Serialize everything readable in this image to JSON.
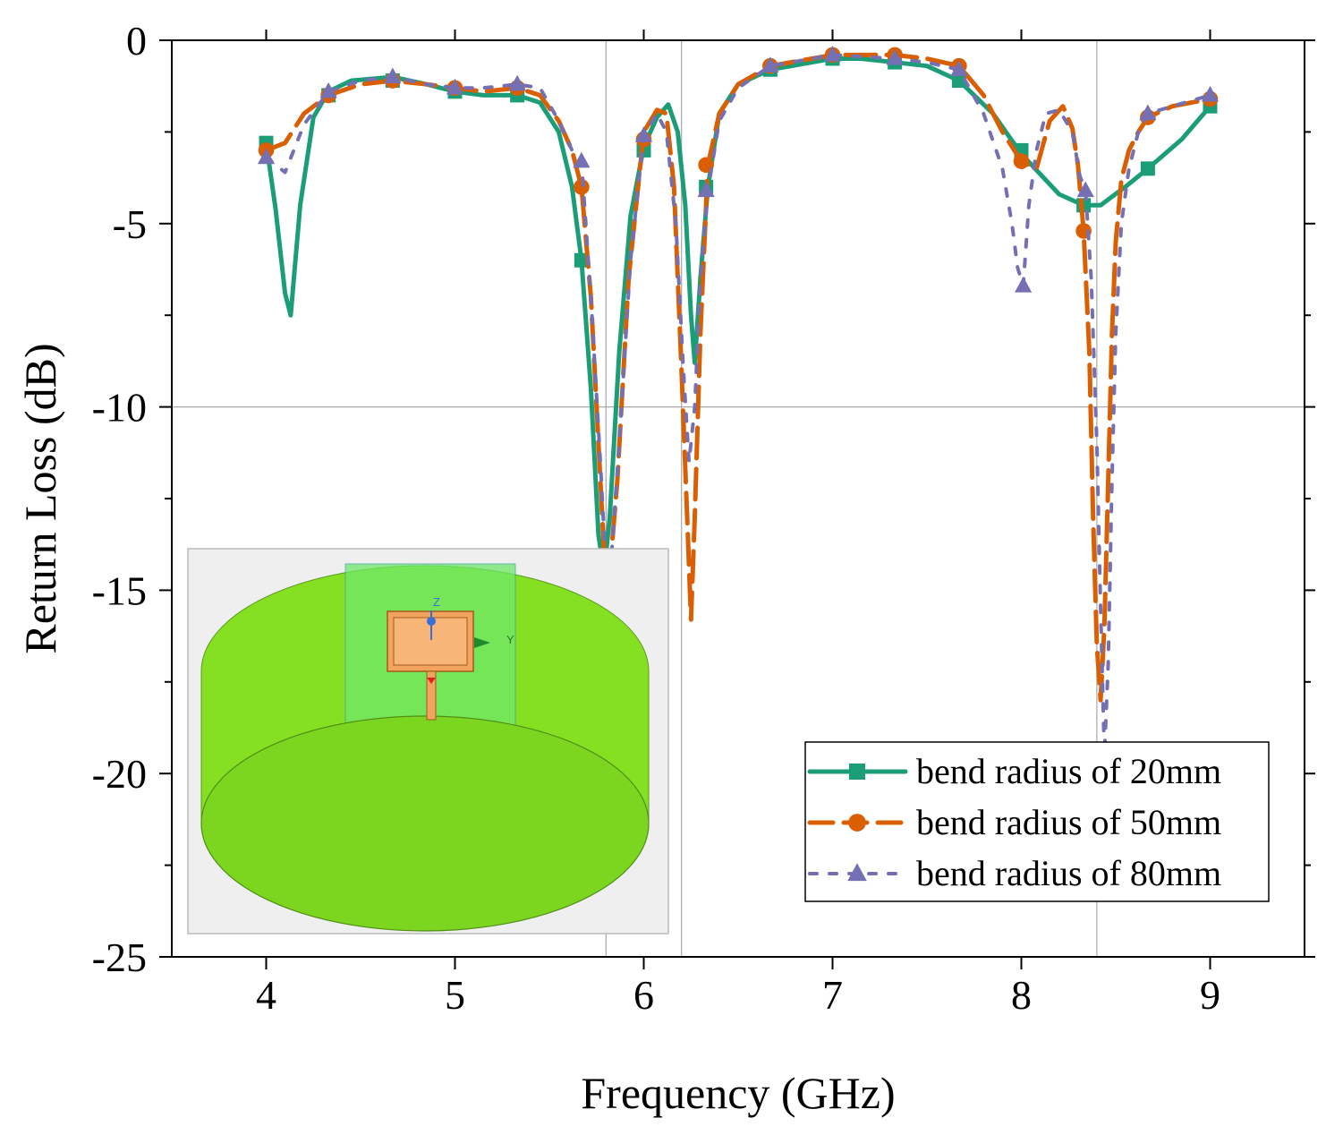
{
  "chart_data": {
    "type": "line",
    "xlabel": "Frequency (GHz)",
    "ylabel": "Return Loss (dB)",
    "xlim": [
      3.5,
      9.5
    ],
    "ylim": [
      -25,
      0
    ],
    "xticks": [
      4,
      5,
      6,
      7,
      8,
      9
    ],
    "yticks": [
      0,
      -5,
      -10,
      -15,
      -20,
      -25
    ],
    "grid": {
      "vertical_lines_x": [
        5.8,
        6.2,
        8.4
      ],
      "horizontal_lines_y": [
        -10
      ]
    },
    "legend_position": "bottom-right",
    "series": [
      {
        "name": "bend radius of 20mm",
        "color": "#1b9e77",
        "line_style": "solid",
        "marker": "square",
        "x": [
          4.0,
          4.05,
          4.1,
          4.13,
          4.18,
          4.25,
          4.33,
          4.45,
          4.67,
          4.85,
          5.0,
          5.15,
          5.33,
          5.45,
          5.55,
          5.62,
          5.67,
          5.72,
          5.76,
          5.79,
          5.82,
          5.87,
          5.93,
          6.0,
          6.07,
          6.13,
          6.18,
          6.22,
          6.25,
          6.27,
          6.3,
          6.34,
          6.4,
          6.5,
          6.67,
          7.0,
          7.15,
          7.33,
          7.5,
          7.67,
          7.85,
          8.0,
          8.2,
          8.33,
          8.42,
          8.55,
          8.67,
          8.85,
          9.0
        ],
        "y": [
          -2.8,
          -4.6,
          -6.9,
          -7.5,
          -4.5,
          -2.1,
          -1.4,
          -1.1,
          -1.0,
          -1.2,
          -1.4,
          -1.5,
          -1.5,
          -1.7,
          -2.5,
          -4.0,
          -6.0,
          -9.5,
          -13.5,
          -14.5,
          -13.0,
          -8.5,
          -4.8,
          -2.9,
          -2.1,
          -1.75,
          -2.5,
          -4.5,
          -7.5,
          -8.8,
          -6.5,
          -4.0,
          -2.0,
          -1.2,
          -0.8,
          -0.5,
          -0.5,
          -0.6,
          -0.7,
          -1.1,
          -2.0,
          -3.1,
          -4.2,
          -4.5,
          -4.5,
          -4.0,
          -3.5,
          -2.7,
          -1.8
        ],
        "markers_x": [
          4.0,
          4.33,
          4.67,
          5.0,
          5.33,
          5.67,
          6.0,
          6.33,
          6.67,
          7.0,
          7.33,
          7.67,
          8.0,
          8.33,
          8.67,
          9.0
        ],
        "markers_y": [
          -2.8,
          -1.5,
          -1.1,
          -1.4,
          -1.5,
          -6.0,
          -3.0,
          -4.0,
          -0.8,
          -0.5,
          -0.6,
          -1.1,
          -3.0,
          -4.5,
          -3.5,
          -1.8
        ]
      },
      {
        "name": "bend radius of 50mm",
        "color": "#d95f02",
        "line_style": "dashed",
        "marker": "circle",
        "x": [
          4.0,
          4.1,
          4.2,
          4.33,
          4.5,
          4.67,
          4.85,
          5.0,
          5.15,
          5.33,
          5.45,
          5.55,
          5.62,
          5.67,
          5.72,
          5.76,
          5.79,
          5.82,
          5.86,
          5.92,
          6.0,
          6.07,
          6.12,
          6.16,
          6.2,
          6.23,
          6.25,
          6.27,
          6.3,
          6.34,
          6.4,
          6.5,
          6.67,
          7.0,
          7.33,
          7.5,
          7.67,
          7.8,
          7.9,
          8.0,
          8.08,
          8.15,
          8.22,
          8.27,
          8.3,
          8.33,
          8.36,
          8.38,
          8.4,
          8.42,
          8.44,
          8.46,
          8.48,
          8.5,
          8.53,
          8.57,
          8.62,
          8.67,
          8.8,
          9.0
        ],
        "y": [
          -3.0,
          -2.8,
          -2.0,
          -1.5,
          -1.2,
          -1.1,
          -1.2,
          -1.3,
          -1.4,
          -1.3,
          -1.5,
          -2.2,
          -3.0,
          -4.0,
          -7.0,
          -11.0,
          -14.0,
          -14.5,
          -12.0,
          -6.5,
          -2.5,
          -1.9,
          -2.0,
          -4.0,
          -9.0,
          -13.0,
          -15.8,
          -13.0,
          -8.0,
          -3.4,
          -2.0,
          -1.2,
          -0.7,
          -0.4,
          -0.4,
          -0.5,
          -0.7,
          -1.5,
          -2.5,
          -3.3,
          -3.5,
          -2.2,
          -1.8,
          -2.4,
          -3.4,
          -5.2,
          -8.5,
          -13.0,
          -16.5,
          -18.0,
          -16.0,
          -12.0,
          -8.0,
          -5.5,
          -3.8,
          -3.0,
          -2.5,
          -2.1,
          -1.8,
          -1.6
        ],
        "markers_x": [
          4.0,
          4.33,
          4.67,
          5.0,
          5.33,
          5.67,
          6.0,
          6.33,
          6.67,
          7.0,
          7.33,
          7.67,
          8.0,
          8.33,
          8.67,
          9.0
        ],
        "markers_y": [
          -3.0,
          -1.5,
          -1.1,
          -1.3,
          -1.3,
          -4.0,
          -2.7,
          -3.4,
          -0.7,
          -0.4,
          -0.4,
          -0.7,
          -3.3,
          -5.2,
          -2.1,
          -1.6
        ]
      },
      {
        "name": "bend radius of 80mm",
        "color": "#7570b3",
        "line_style": "dotted",
        "marker": "triangle",
        "x": [
          4.0,
          4.1,
          4.2,
          4.33,
          4.5,
          4.67,
          4.85,
          5.0,
          5.15,
          5.33,
          5.45,
          5.55,
          5.62,
          5.67,
          5.72,
          5.77,
          5.8,
          5.83,
          5.87,
          5.93,
          6.0,
          6.07,
          6.12,
          6.17,
          6.21,
          6.24,
          6.27,
          6.3,
          6.34,
          6.4,
          6.5,
          6.67,
          7.0,
          7.33,
          7.5,
          7.67,
          7.8,
          7.9,
          7.95,
          7.98,
          8.01,
          8.04,
          8.08,
          8.13,
          8.2,
          8.27,
          8.31,
          8.34,
          8.37,
          8.4,
          8.42,
          8.44,
          8.46,
          8.48,
          8.5,
          8.53,
          8.57,
          8.62,
          8.67,
          8.8,
          9.0
        ],
        "y": [
          -3.2,
          -3.6,
          -2.3,
          -1.4,
          -1.1,
          -1.0,
          -1.2,
          -1.3,
          -1.3,
          -1.2,
          -1.3,
          -2.2,
          -3.0,
          -3.3,
          -7.0,
          -11.5,
          -14.5,
          -14.0,
          -11.0,
          -6.0,
          -2.6,
          -2.0,
          -2.5,
          -5.0,
          -9.0,
          -11.5,
          -10.0,
          -6.5,
          -4.1,
          -2.2,
          -1.3,
          -0.7,
          -0.4,
          -0.5,
          -0.6,
          -0.8,
          -2.0,
          -3.5,
          -5.0,
          -6.2,
          -6.7,
          -4.5,
          -3.0,
          -2.0,
          -1.9,
          -2.5,
          -3.7,
          -4.1,
          -6.5,
          -11.0,
          -15.5,
          -19.5,
          -17.0,
          -12.0,
          -8.0,
          -5.0,
          -3.5,
          -2.5,
          -2.0,
          -1.8,
          -1.5
        ],
        "markers_x": [
          4.0,
          4.33,
          4.67,
          5.0,
          5.33,
          5.67,
          6.0,
          6.33,
          6.67,
          7.0,
          7.33,
          7.67,
          8.01,
          8.34,
          8.67,
          9.0
        ],
        "markers_y": [
          -3.2,
          -1.4,
          -1.0,
          -1.3,
          -1.2,
          -3.3,
          -2.6,
          -4.1,
          -0.7,
          -0.4,
          -0.5,
          -0.8,
          -6.7,
          -4.1,
          -2.0,
          -1.5
        ]
      }
    ]
  },
  "inset": {
    "axis_z": "Z",
    "axis_y": "Y",
    "cylinder_color": "#84e021",
    "patch_color": "#f2a35e"
  }
}
